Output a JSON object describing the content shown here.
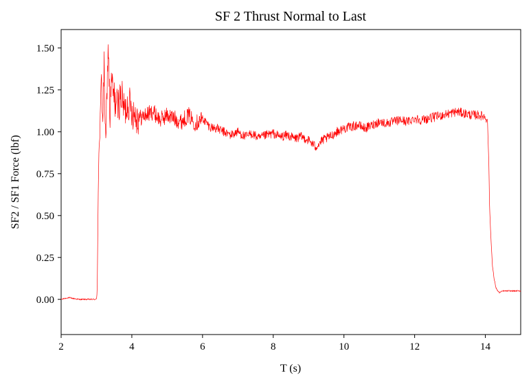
{
  "chart_data": {
    "type": "line",
    "title": "SF 2 Thrust Normal to Last",
    "xlabel": "T (s)",
    "ylabel": "SF2 / SF1 Force (lbf)",
    "xlim": [
      2,
      15
    ],
    "ylim": [
      -0.21,
      1.61
    ],
    "xticks": [
      {
        "value": 2,
        "label": "2"
      },
      {
        "value": 4,
        "label": "4"
      },
      {
        "value": 6,
        "label": "6"
      },
      {
        "value": 8,
        "label": "8"
      },
      {
        "value": 10,
        "label": "10"
      },
      {
        "value": 12,
        "label": "12"
      },
      {
        "value": 14,
        "label": "14"
      }
    ],
    "yticks": [
      {
        "value": 0.0,
        "label": "0.00"
      },
      {
        "value": 0.25,
        "label": "0.25"
      },
      {
        "value": 0.5,
        "label": "0.50"
      },
      {
        "value": 0.75,
        "label": "0.75"
      },
      {
        "value": 1.0,
        "label": "1.00"
      },
      {
        "value": 1.25,
        "label": "1.25"
      },
      {
        "value": 1.5,
        "label": "1.50"
      }
    ],
    "grid": false,
    "series": [
      {
        "color": "#ff0000",
        "noise_after_ignition": true,
        "x": [
          2.0,
          2.2,
          2.5,
          2.8,
          3.0,
          3.02,
          3.05,
          3.07,
          3.1,
          3.14,
          3.18,
          3.22,
          3.26,
          3.3,
          3.34,
          3.38,
          3.42,
          3.5,
          3.6,
          3.7,
          3.8,
          3.9,
          4.0,
          4.2,
          4.4,
          4.6,
          4.8,
          5.0,
          5.2,
          5.4,
          5.6,
          5.8,
          6.0,
          6.2,
          6.4,
          6.6,
          6.8,
          7.0,
          7.2,
          7.4,
          7.6,
          7.8,
          8.0,
          8.2,
          8.4,
          8.6,
          8.8,
          9.0,
          9.2,
          9.4,
          9.6,
          9.8,
          10.0,
          10.2,
          10.4,
          10.6,
          10.8,
          11.0,
          11.2,
          11.4,
          11.6,
          11.8,
          12.0,
          12.2,
          12.4,
          12.6,
          12.8,
          13.0,
          13.2,
          13.4,
          13.6,
          13.8,
          14.0,
          14.06,
          14.1,
          14.12,
          14.15,
          14.2,
          14.25,
          14.3,
          14.35,
          14.4,
          14.5,
          14.7,
          15.0
        ],
        "y": [
          0.0,
          0.01,
          0.0,
          0.0,
          0.0,
          0.05,
          0.65,
          0.9,
          0.98,
          1.32,
          1.08,
          1.4,
          0.85,
          1.3,
          1.52,
          1.05,
          1.3,
          1.2,
          1.15,
          1.22,
          1.12,
          1.18,
          1.13,
          1.08,
          1.1,
          1.12,
          1.07,
          1.1,
          1.08,
          1.06,
          1.1,
          1.05,
          1.08,
          1.03,
          1.02,
          1.0,
          0.98,
          1.0,
          0.97,
          0.99,
          0.96,
          0.98,
          0.99,
          0.97,
          0.98,
          0.96,
          0.97,
          0.95,
          0.91,
          0.95,
          0.97,
          1.0,
          1.02,
          1.03,
          1.04,
          1.02,
          1.04,
          1.06,
          1.05,
          1.06,
          1.07,
          1.06,
          1.08,
          1.07,
          1.08,
          1.09,
          1.1,
          1.11,
          1.12,
          1.11,
          1.1,
          1.1,
          1.09,
          1.07,
          0.8,
          0.55,
          0.4,
          0.2,
          0.12,
          0.07,
          0.05,
          0.04,
          0.05,
          0.05,
          0.05
        ]
      }
    ]
  }
}
